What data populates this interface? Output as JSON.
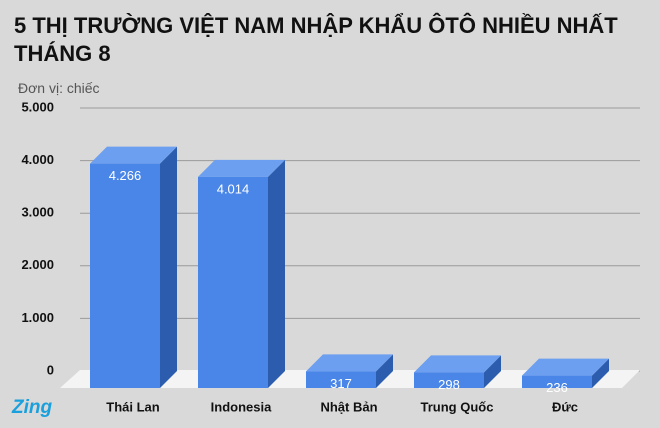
{
  "chart_data": {
    "type": "bar3d",
    "title": "5 THỊ TRƯỜNG VIỆT NAM NHẬP KHẨU ÔTÔ NHIỀU NHẤT THÁNG 8",
    "subtitle": "Đơn vị: chiếc",
    "categories": [
      "Thái Lan",
      "Indonesia",
      "Nhật Bản",
      "Trung Quốc",
      "Đức"
    ],
    "values": [
      4266,
      4014,
      317,
      298,
      236
    ],
    "value_labels": [
      "4.266",
      "4.014",
      "317",
      "298",
      "236"
    ],
    "color": "#4a86e8",
    "ylim": [
      0,
      5000
    ],
    "yticks": [
      0,
      {
        "value": 1000,
        "label": "1.000"
      },
      {
        "value": 2000,
        "label": "2.000"
      },
      {
        "value": 3000,
        "label": "3.000"
      },
      {
        "value": 4000,
        "label": "4.000"
      },
      {
        "value": 5000,
        "label": "5.000"
      }
    ],
    "grid": true
  },
  "logo": "Zing"
}
